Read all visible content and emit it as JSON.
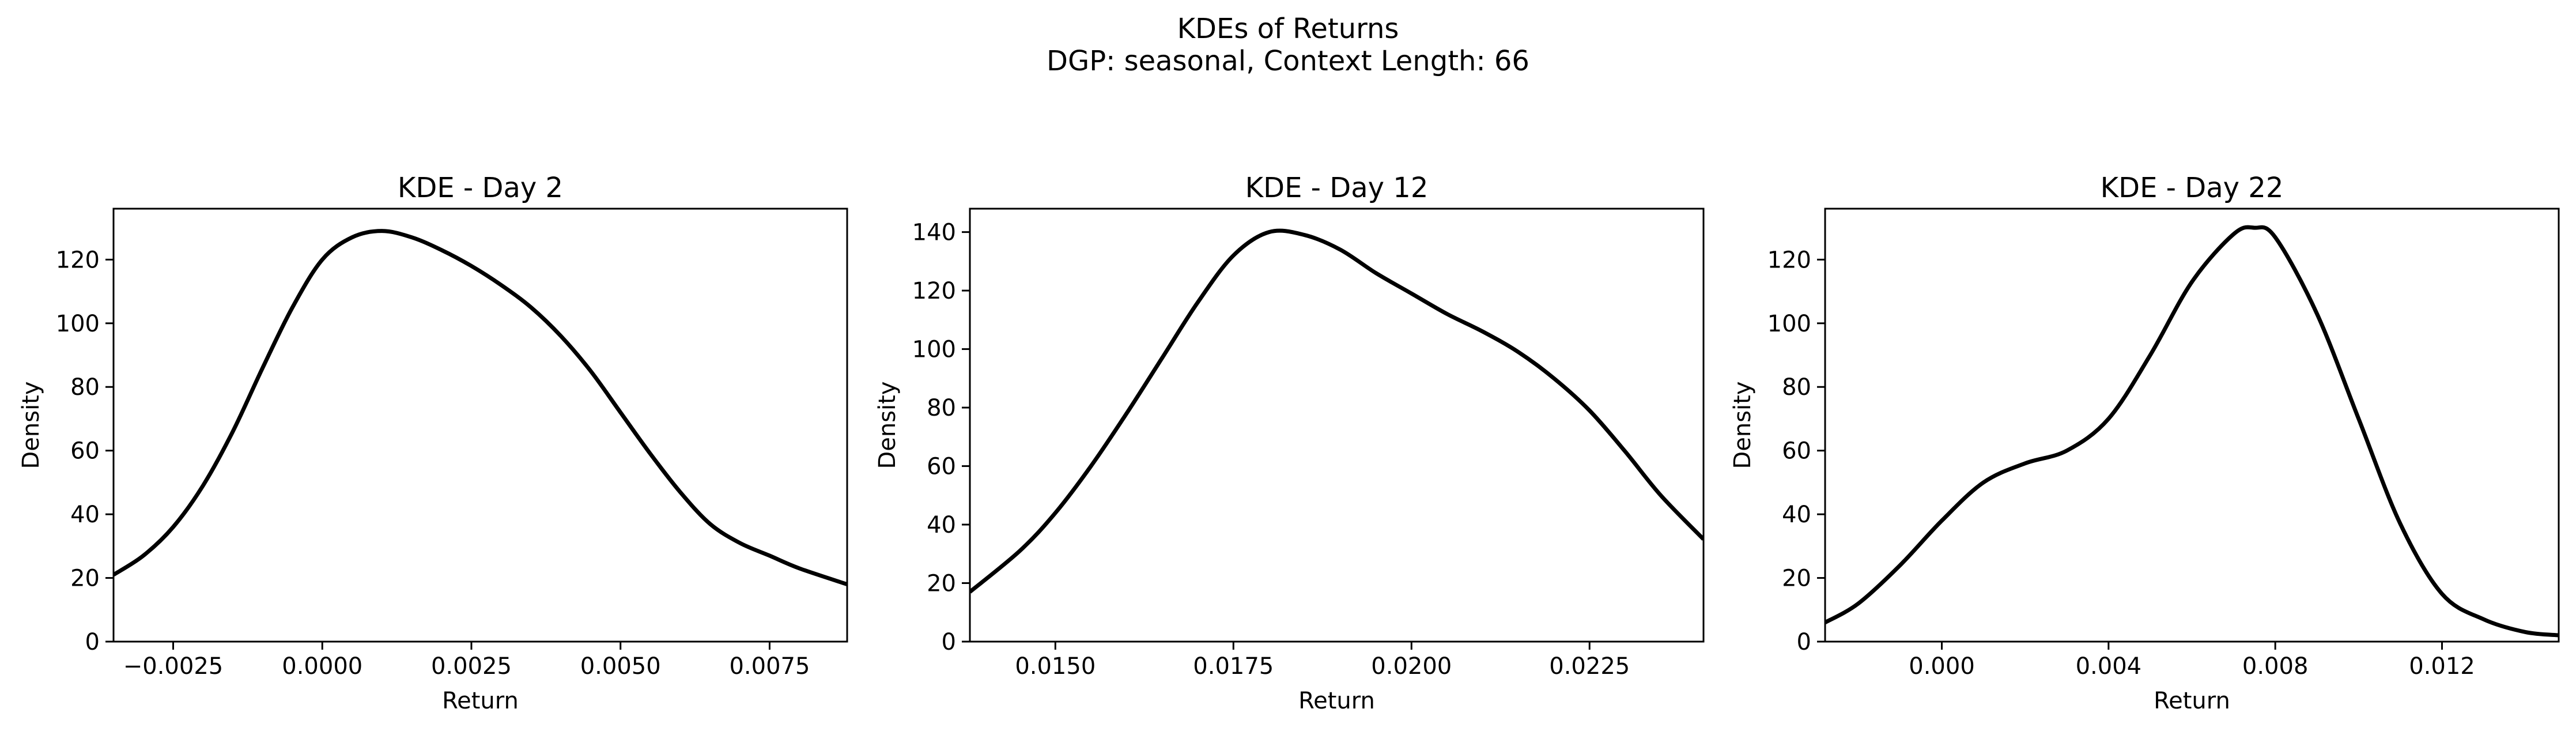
{
  "figure": {
    "title_line1": "KDEs of Returns",
    "title_line2": "DGP: seasonal, Context Length: 66"
  },
  "chart_data": [
    {
      "type": "line",
      "title": "KDE - Day 2",
      "xlabel": "Return",
      "ylabel": "Density",
      "xlim": [
        -0.0035,
        0.0088
      ],
      "ylim": [
        0,
        136
      ],
      "xticks": [
        -0.0025,
        0.0,
        0.0025,
        0.005,
        0.0075
      ],
      "xtick_labels": [
        "−0.0025",
        "0.0000",
        "0.0025",
        "0.0050",
        "0.0075"
      ],
      "yticks": [
        0,
        20,
        40,
        60,
        80,
        100,
        120
      ],
      "ytick_labels": [
        "0",
        "20",
        "40",
        "60",
        "80",
        "100",
        "120"
      ],
      "line_color": "#000000",
      "x": [
        -0.0035,
        -0.003,
        -0.0025,
        -0.002,
        -0.0015,
        -0.001,
        -0.0005,
        0.0,
        0.0005,
        0.001,
        0.0015,
        0.002,
        0.0025,
        0.003,
        0.0035,
        0.004,
        0.0045,
        0.005,
        0.0055,
        0.006,
        0.0065,
        0.007,
        0.0075,
        0.008,
        0.0088
      ],
      "y": [
        21,
        27,
        36,
        49,
        66,
        86,
        105,
        120,
        127,
        129,
        127,
        123,
        118,
        112,
        105,
        96,
        85,
        72,
        59,
        47,
        37,
        31,
        27,
        23,
        18
      ]
    },
    {
      "type": "line",
      "title": "KDE - Day 12",
      "xlabel": "Return",
      "ylabel": "Density",
      "xlim": [
        0.0138,
        0.0241
      ],
      "ylim": [
        0,
        148
      ],
      "xticks": [
        0.015,
        0.0175,
        0.02,
        0.0225
      ],
      "xtick_labels": [
        "0.0150",
        "0.0175",
        "0.0200",
        "0.0225"
      ],
      "yticks": [
        0,
        20,
        40,
        60,
        80,
        100,
        120,
        140
      ],
      "ytick_labels": [
        "0",
        "20",
        "40",
        "60",
        "80",
        "100",
        "120",
        "140"
      ],
      "line_color": "#000000",
      "x": [
        0.0138,
        0.0145,
        0.015,
        0.0155,
        0.016,
        0.0165,
        0.017,
        0.0175,
        0.018,
        0.0185,
        0.019,
        0.0195,
        0.02,
        0.0205,
        0.021,
        0.0215,
        0.022,
        0.0225,
        0.023,
        0.0235,
        0.0241
      ],
      "y": [
        17,
        31,
        44,
        60,
        78,
        97,
        116,
        132,
        140,
        139,
        134,
        126,
        119,
        112,
        106,
        99,
        90,
        79,
        65,
        50,
        35
      ]
    },
    {
      "type": "line",
      "title": "KDE - Day 22",
      "xlabel": "Return",
      "ylabel": "Density",
      "xlim": [
        -0.0028,
        0.0148
      ],
      "ylim": [
        0,
        136
      ],
      "xticks": [
        0.0,
        0.004,
        0.008,
        0.012
      ],
      "xtick_labels": [
        "0.000",
        "0.004",
        "0.008",
        "0.012"
      ],
      "yticks": [
        0,
        20,
        40,
        60,
        80,
        100,
        120
      ],
      "ytick_labels": [
        "0",
        "20",
        "40",
        "60",
        "80",
        "100",
        "120"
      ],
      "line_color": "#000000",
      "x": [
        -0.0028,
        -0.002,
        -0.001,
        0.0,
        0.001,
        0.002,
        0.003,
        0.004,
        0.005,
        0.006,
        0.007,
        0.0075,
        0.008,
        0.009,
        0.01,
        0.011,
        0.012,
        0.013,
        0.014,
        0.0148
      ],
      "y": [
        6,
        12,
        24,
        38,
        50,
        56,
        60,
        70,
        90,
        113,
        128,
        130,
        127,
        103,
        70,
        37,
        15,
        7,
        3,
        2
      ]
    }
  ]
}
